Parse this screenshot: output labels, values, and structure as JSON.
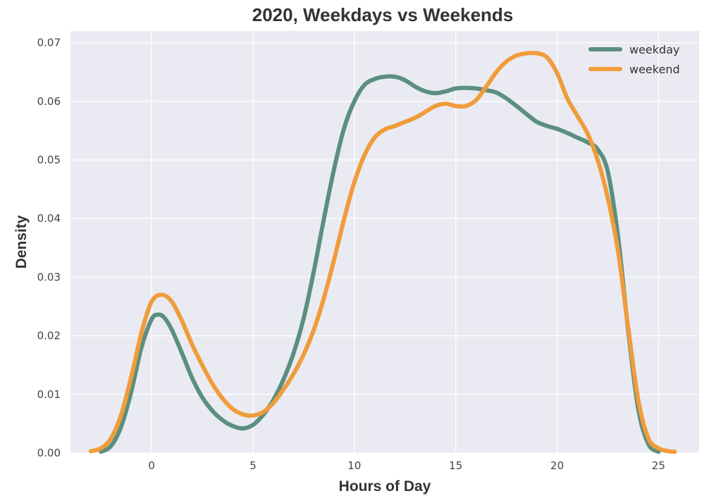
{
  "chart_data": {
    "type": "line",
    "title": "2020, Weekdays vs Weekends",
    "xlabel": "Hours of Day",
    "ylabel": "Density",
    "xlim": [
      -4,
      27
    ],
    "ylim": [
      0,
      0.072
    ],
    "xticks": [
      0,
      5,
      10,
      15,
      20,
      25
    ],
    "yticks": [
      0.0,
      0.01,
      0.02,
      0.03,
      0.04,
      0.05,
      0.06,
      0.07
    ],
    "ytick_labels": [
      "0.00",
      "0.01",
      "0.02",
      "0.03",
      "0.04",
      "0.05",
      "0.06",
      "0.07"
    ],
    "grid": true,
    "legend": "top-right",
    "series": [
      {
        "name": "weekday",
        "color": "#5b8f80",
        "x": [
          -2.5,
          -2,
          -1.5,
          -1,
          -0.5,
          0,
          0.3,
          0.6,
          1,
          1.5,
          2,
          2.5,
          3,
          3.5,
          4,
          4.5,
          5,
          5.5,
          6,
          6.5,
          7,
          7.5,
          8,
          8.5,
          9,
          9.5,
          10,
          10.5,
          11,
          11.5,
          12,
          12.5,
          13,
          13.5,
          14,
          14.5,
          15,
          15.5,
          16,
          16.5,
          17,
          17.5,
          18,
          18.5,
          19,
          19.5,
          20,
          20.5,
          21,
          21.5,
          22,
          22.5,
          23,
          23.5,
          24,
          24.5,
          25
        ],
        "y": [
          0.0002,
          0.0012,
          0.0045,
          0.0105,
          0.018,
          0.0228,
          0.0236,
          0.0232,
          0.021,
          0.017,
          0.0128,
          0.0095,
          0.0072,
          0.0056,
          0.0046,
          0.0042,
          0.0048,
          0.0065,
          0.009,
          0.0125,
          0.017,
          0.023,
          0.031,
          0.04,
          0.0485,
          0.0555,
          0.06,
          0.0628,
          0.0638,
          0.0642,
          0.0642,
          0.0636,
          0.0625,
          0.0617,
          0.0614,
          0.0617,
          0.0622,
          0.0623,
          0.0622,
          0.0619,
          0.0615,
          0.0605,
          0.0592,
          0.0578,
          0.0565,
          0.0558,
          0.0553,
          0.0546,
          0.0538,
          0.053,
          0.0518,
          0.048,
          0.037,
          0.021,
          0.0075,
          0.0015,
          0.0002
        ]
      },
      {
        "name": "weekend",
        "color": "#f09c3b",
        "x": [
          -3,
          -2.5,
          -2,
          -1.5,
          -1,
          -0.5,
          0,
          0.5,
          1,
          1.5,
          2,
          2.5,
          3,
          3.5,
          4,
          4.5,
          5,
          5.5,
          6,
          6.5,
          7,
          7.5,
          8,
          8.5,
          9,
          9.5,
          10,
          10.5,
          11,
          11.5,
          12,
          12.5,
          13,
          13.5,
          14,
          14.5,
          15,
          15.5,
          16,
          16.5,
          17,
          17.5,
          18,
          18.5,
          19,
          19.5,
          20,
          20.5,
          21,
          21.5,
          22,
          22.5,
          23,
          23.5,
          24,
          24.5,
          25,
          25.5,
          25.8
        ],
        "y": [
          0.0003,
          0.0008,
          0.0025,
          0.0065,
          0.013,
          0.0205,
          0.0258,
          0.027,
          0.0258,
          0.0225,
          0.0185,
          0.015,
          0.0118,
          0.0093,
          0.0075,
          0.0066,
          0.0064,
          0.007,
          0.0085,
          0.0108,
          0.0135,
          0.0168,
          0.021,
          0.0265,
          0.033,
          0.04,
          0.0462,
          0.0508,
          0.0538,
          0.0552,
          0.0558,
          0.0565,
          0.0572,
          0.0582,
          0.0592,
          0.0596,
          0.0592,
          0.0592,
          0.0602,
          0.0625,
          0.065,
          0.0668,
          0.0678,
          0.0682,
          0.0682,
          0.0675,
          0.0648,
          0.0605,
          0.0575,
          0.0545,
          0.05,
          0.0435,
          0.0345,
          0.0215,
          0.009,
          0.0025,
          0.0008,
          0.0003,
          0.0002
        ]
      }
    ]
  }
}
